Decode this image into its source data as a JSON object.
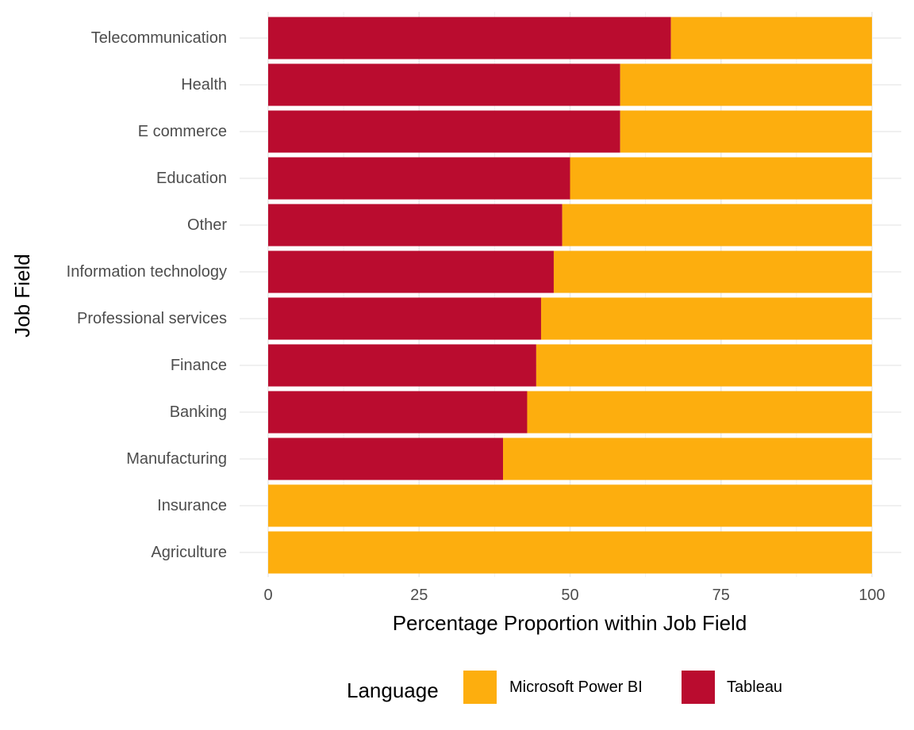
{
  "chart_data": {
    "type": "bar",
    "orientation": "horizontal",
    "stacked": true,
    "title": "",
    "xlabel": "Percentage Proportion within Job Field",
    "ylabel": "Job Field",
    "xlim": [
      0,
      100
    ],
    "xticks": [
      "0",
      "25",
      "50",
      "75",
      "100"
    ],
    "xtick_values": [
      0,
      25,
      50,
      75,
      100
    ],
    "grid": true,
    "legend_position": "bottom",
    "legend_title": "Language",
    "categories": [
      "Telecommunication",
      "Health",
      "E commerce",
      "Education",
      "Other",
      "Information technology",
      "Professional services",
      "Finance",
      "Banking",
      "Manufacturing",
      "Insurance",
      "Agriculture"
    ],
    "series": [
      {
        "name": "Tableau",
        "color": "#ba0c2f",
        "values": [
          66.7,
          58.3,
          58.3,
          50.0,
          48.7,
          47.3,
          45.2,
          44.4,
          42.9,
          38.9,
          0,
          0
        ]
      },
      {
        "name": "Microsoft Power BI",
        "color": "#fdae0e",
        "values": [
          33.3,
          41.7,
          41.7,
          50.0,
          51.3,
          52.7,
          54.8,
          55.6,
          57.1,
          61.1,
          100,
          100
        ]
      }
    ],
    "legend_order": [
      "Microsoft Power BI",
      "Tableau"
    ]
  }
}
